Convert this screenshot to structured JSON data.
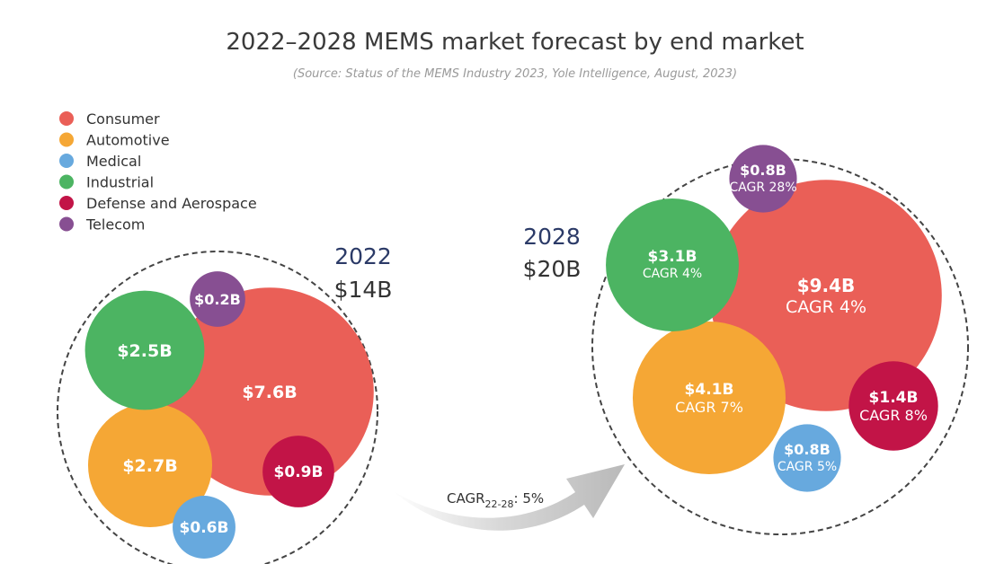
{
  "chart_data": {
    "type": "bubble",
    "title": "2022–2028 MEMS market forecast by end market",
    "subtitle": "(Source: Status of the MEMS Industry 2023, Yole Intelligence, August, 2023)",
    "legend_position": "top-left",
    "legend": [
      {
        "name": "Consumer",
        "color": "#ea5f57"
      },
      {
        "name": "Automotive",
        "color": "#f5a735"
      },
      {
        "name": "Medical",
        "color": "#67a9de"
      },
      {
        "name": "Industrial",
        "color": "#4cb462"
      },
      {
        "name": "Defense and Aerospace",
        "color": "#c21447"
      },
      {
        "name": "Telecom",
        "color": "#874f92"
      }
    ],
    "years": [
      {
        "year": "2022",
        "total": "$14B",
        "segments": [
          {
            "market": "Consumer",
            "value_label": "$7.6B",
            "value": 7.6,
            "cagr": ""
          },
          {
            "market": "Automotive",
            "value_label": "$2.7B",
            "value": 2.7,
            "cagr": ""
          },
          {
            "market": "Industrial",
            "value_label": "$2.5B",
            "value": 2.5,
            "cagr": ""
          },
          {
            "market": "Defense and Aerospace",
            "value_label": "$0.9B",
            "value": 0.9,
            "cagr": ""
          },
          {
            "market": "Medical",
            "value_label": "$0.6B",
            "value": 0.6,
            "cagr": ""
          },
          {
            "market": "Telecom",
            "value_label": "$0.2B",
            "value": 0.2,
            "cagr": ""
          }
        ]
      },
      {
        "year": "2028",
        "total": "$20B",
        "segments": [
          {
            "market": "Consumer",
            "value_label": "$9.4B",
            "value": 9.4,
            "cagr": "CAGR 4%"
          },
          {
            "market": "Automotive",
            "value_label": "$4.1B",
            "value": 4.1,
            "cagr": "CAGR 7%"
          },
          {
            "market": "Industrial",
            "value_label": "$3.1B",
            "value": 3.1,
            "cagr": "CAGR 4%"
          },
          {
            "market": "Defense and Aerospace",
            "value_label": "$1.4B",
            "value": 1.4,
            "cagr": "CAGR 8%"
          },
          {
            "market": "Medical",
            "value_label": "$0.8B",
            "value": 0.8,
            "cagr": "CAGR 5%"
          },
          {
            "market": "Telecom",
            "value_label": "$0.8B",
            "value": 0.8,
            "cagr": "CAGR 28%"
          }
        ]
      }
    ],
    "overall_cagr": {
      "prefix": "CAGR",
      "period": "22-28",
      "value": ": 5%"
    }
  }
}
